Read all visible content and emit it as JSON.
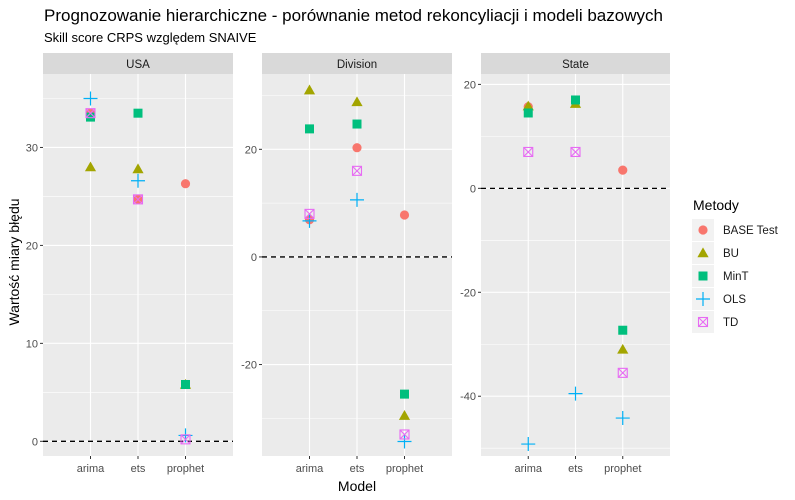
{
  "chart_data": {
    "type": "scatter",
    "title": "Prognozowanie hierarchiczne  - porównanie metod rekoncyliacji i modeli bazowych",
    "subtitle": "Skill score CRPS względem SNAIVE",
    "xlabel": "Model",
    "ylabel": "Wartość miary błędu",
    "categories": [
      "arima",
      "ets",
      "prophet"
    ],
    "grid": true,
    "reference_line": 0,
    "legend": {
      "title": "Metody",
      "placement": "right",
      "entries": [
        {
          "name": "BASE Test",
          "shape": "circle",
          "color": "#F8766D"
        },
        {
          "name": "BU",
          "shape": "triangle",
          "color": "#A3A500"
        },
        {
          "name": "MinT",
          "shape": "square",
          "color": "#00BF7D"
        },
        {
          "name": "OLS",
          "shape": "plus",
          "color": "#00B0F6"
        },
        {
          "name": "TD",
          "shape": "boxcross",
          "color": "#E76BF3"
        }
      ]
    },
    "panels": [
      {
        "name": "USA",
        "ylim": [
          -1.5,
          37.5
        ],
        "yticks": [
          0,
          10,
          20,
          30
        ],
        "series": [
          {
            "name": "BASE Test",
            "values": [
              33.5,
              24.7,
              26.3
            ]
          },
          {
            "name": "BU",
            "values": [
              28.0,
              27.8,
              5.8
            ]
          },
          {
            "name": "MinT",
            "values": [
              33.1,
              33.5,
              5.8
            ]
          },
          {
            "name": "OLS",
            "values": [
              35.0,
              26.6,
              0.6
            ]
          },
          {
            "name": "TD",
            "values": [
              33.5,
              24.7,
              0.2
            ]
          }
        ]
      },
      {
        "name": "Division",
        "ylim": [
          -37.0,
          34.0
        ],
        "yticks": [
          -20,
          0,
          20
        ],
        "series": [
          {
            "name": "BASE Test",
            "values": [
              6.9,
              20.3,
              7.8
            ]
          },
          {
            "name": "BU",
            "values": [
              31.0,
              28.8,
              -29.5
            ]
          },
          {
            "name": "MinT",
            "values": [
              23.8,
              24.7,
              -25.5
            ]
          },
          {
            "name": "OLS",
            "values": [
              6.7,
              10.6,
              -34.3
            ]
          },
          {
            "name": "TD",
            "values": [
              8.0,
              16.0,
              -33.0
            ]
          }
        ]
      },
      {
        "name": "State",
        "ylim": [
          -51.5,
          22.0
        ],
        "yticks": [
          -40,
          -20,
          0,
          20
        ],
        "series": [
          {
            "name": "BASE Test",
            "values": [
              15.7,
              16.7,
              3.5
            ]
          },
          {
            "name": "BU",
            "values": [
              15.8,
              16.3,
              -31.0
            ]
          },
          {
            "name": "MinT",
            "values": [
              14.5,
              17.0,
              -27.3
            ]
          },
          {
            "name": "OLS",
            "values": [
              -49.2,
              -39.5,
              -44.2
            ]
          },
          {
            "name": "TD",
            "values": [
              7.0,
              7.0,
              -35.5
            ]
          }
        ]
      }
    ]
  }
}
